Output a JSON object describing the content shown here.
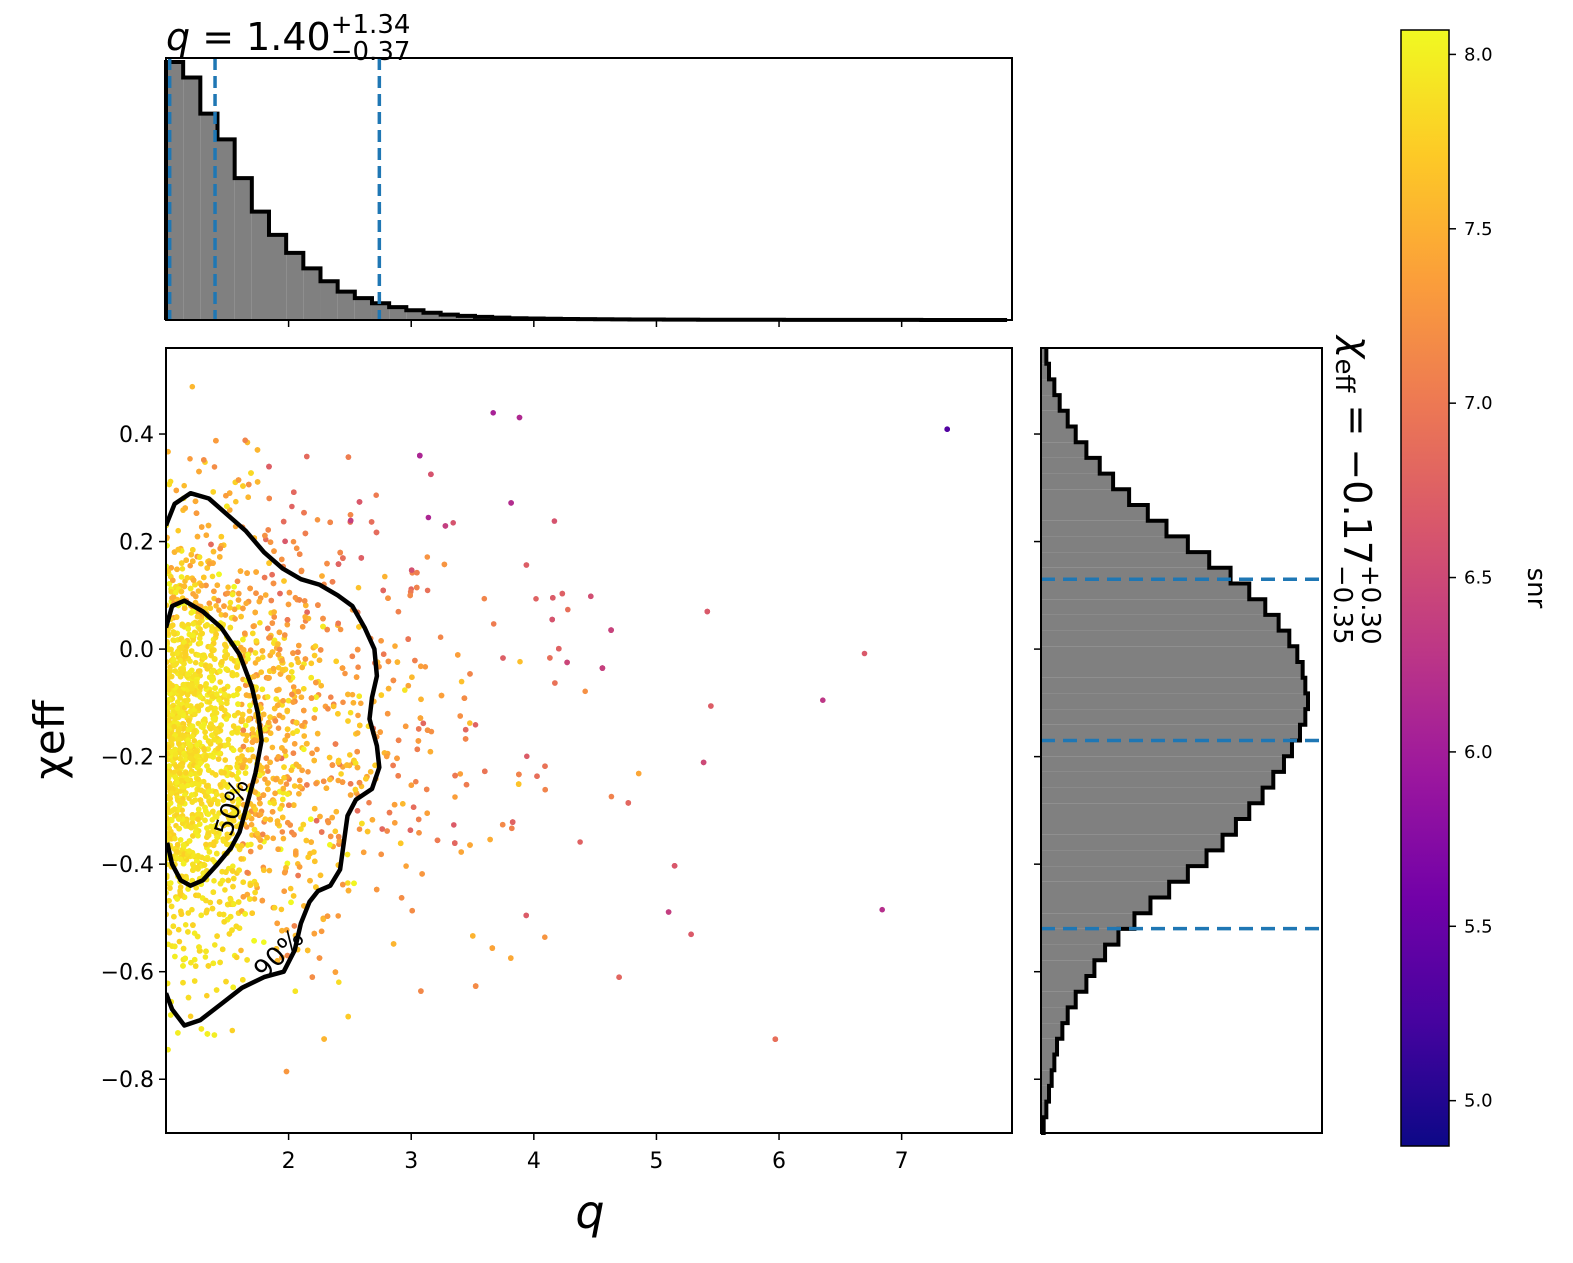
{
  "chart_data": [
    {
      "type": "scatter",
      "panel": "joint",
      "title": "",
      "xlabel": "q",
      "ylabel": "χeff",
      "xlim": [
        1.0,
        7.9
      ],
      "ylim": [
        -0.9,
        0.56
      ],
      "xticks": [
        "2",
        "3",
        "4",
        "5",
        "6",
        "7"
      ],
      "xtick_values": [
        2,
        3,
        4,
        5,
        6,
        7
      ],
      "yticks": [
        "0.4",
        "0.2",
        "0.0",
        "−0.2",
        "−0.4",
        "−0.6",
        "−0.8"
      ],
      "ytick_values": [
        0.4,
        0.2,
        0.0,
        -0.2,
        -0.4,
        -0.6,
        -0.8
      ],
      "color_by": "snr",
      "contours": [
        {
          "label": "50%",
          "points": [
            [
              1.0,
              0.04
            ],
            [
              1.05,
              0.08
            ],
            [
              1.15,
              0.09
            ],
            [
              1.3,
              0.07
            ],
            [
              1.45,
              0.04
            ],
            [
              1.6,
              -0.01
            ],
            [
              1.7,
              -0.07
            ],
            [
              1.75,
              -0.12
            ],
            [
              1.78,
              -0.17
            ],
            [
              1.73,
              -0.23
            ],
            [
              1.66,
              -0.29
            ],
            [
              1.6,
              -0.34
            ],
            [
              1.53,
              -0.37
            ],
            [
              1.42,
              -0.4
            ],
            [
              1.3,
              -0.43
            ],
            [
              1.2,
              -0.44
            ],
            [
              1.12,
              -0.43
            ],
            [
              1.05,
              -0.4
            ],
            [
              1.01,
              -0.36
            ]
          ]
        },
        {
          "label": "90%",
          "points": [
            [
              1.0,
              0.23
            ],
            [
              1.07,
              0.27
            ],
            [
              1.2,
              0.29
            ],
            [
              1.35,
              0.28
            ],
            [
              1.5,
              0.25
            ],
            [
              1.65,
              0.22
            ],
            [
              1.8,
              0.18
            ],
            [
              1.95,
              0.15
            ],
            [
              2.1,
              0.13
            ],
            [
              2.25,
              0.12
            ],
            [
              2.4,
              0.1
            ],
            [
              2.52,
              0.08
            ],
            [
              2.62,
              0.04
            ],
            [
              2.7,
              0.0
            ],
            [
              2.72,
              -0.05
            ],
            [
              2.68,
              -0.09
            ],
            [
              2.66,
              -0.13
            ],
            [
              2.72,
              -0.18
            ],
            [
              2.74,
              -0.22
            ],
            [
              2.68,
              -0.26
            ],
            [
              2.55,
              -0.28
            ],
            [
              2.48,
              -0.31
            ],
            [
              2.45,
              -0.36
            ],
            [
              2.42,
              -0.41
            ],
            [
              2.34,
              -0.44
            ],
            [
              2.24,
              -0.45
            ],
            [
              2.17,
              -0.47
            ],
            [
              2.1,
              -0.51
            ],
            [
              2.05,
              -0.56
            ],
            [
              1.96,
              -0.6
            ],
            [
              1.8,
              -0.61
            ],
            [
              1.62,
              -0.63
            ],
            [
              1.45,
              -0.66
            ],
            [
              1.28,
              -0.69
            ],
            [
              1.15,
              -0.7
            ],
            [
              1.05,
              -0.67
            ],
            [
              1.0,
              -0.64
            ]
          ]
        }
      ]
    },
    {
      "type": "histogram",
      "panel": "top-marginal",
      "title": "q = 1.40+1.34−0.37",
      "title_parts": {
        "var": "q",
        "equals": " = ",
        "value": "1.40",
        "plus": "+1.34",
        "minus": "−0.37"
      },
      "bin_start": 1.0,
      "bin_width": 0.14,
      "counts": [
        1.0,
        0.94,
        0.8,
        0.7,
        0.55,
        0.42,
        0.33,
        0.26,
        0.2,
        0.15,
        0.11,
        0.085,
        0.065,
        0.05,
        0.038,
        0.028,
        0.021,
        0.016,
        0.012,
        0.009,
        0.007,
        0.006,
        0.005,
        0.004,
        0.0035,
        0.003,
        0.0025,
        0.002,
        0.002,
        0.0015,
        0.0015,
        0.001,
        0.001,
        0.001,
        0.001,
        0.0008,
        0.0007,
        0.0006,
        0.0005,
        0.0005,
        0.0004,
        0.0004,
        0.0003,
        0.0003,
        0.0002,
        0.0002,
        0.0002,
        0.0001,
        0.0001
      ],
      "quantile_lines": [
        1.03,
        1.4,
        2.74
      ],
      "line_color": "#1f77b4",
      "fill_color": "#808080"
    },
    {
      "type": "histogram",
      "panel": "right-marginal",
      "orientation": "horizontal",
      "title": "χeff = −0.17+0.30−0.35",
      "title_parts": {
        "var": "χ",
        "sub": "eff",
        "equals": " = ",
        "value": "−0.17",
        "plus": "+0.30",
        "minus": "−0.35"
      },
      "bin_start": -0.9,
      "bin_width": 0.0292,
      "counts": [
        0.01,
        0.02,
        0.03,
        0.04,
        0.05,
        0.06,
        0.08,
        0.1,
        0.13,
        0.17,
        0.2,
        0.24,
        0.29,
        0.35,
        0.41,
        0.48,
        0.55,
        0.62,
        0.68,
        0.73,
        0.78,
        0.83,
        0.87,
        0.91,
        0.94,
        0.97,
        0.99,
        1.0,
        0.99,
        0.98,
        0.96,
        0.93,
        0.89,
        0.84,
        0.78,
        0.71,
        0.63,
        0.55,
        0.47,
        0.4,
        0.33,
        0.27,
        0.22,
        0.17,
        0.13,
        0.1,
        0.07,
        0.05,
        0.03,
        0.02
      ],
      "quantile_lines": [
        -0.52,
        -0.17,
        0.13
      ],
      "line_color": "#1f77b4",
      "fill_color": "#808080"
    },
    {
      "type": "colorbar",
      "label": "snr",
      "cmap": "plasma",
      "range": [
        4.87,
        8.07
      ],
      "ticks": [
        "5.0",
        "5.5",
        "6.0",
        "6.5",
        "7.0",
        "7.5",
        "8.0"
      ],
      "tick_values": [
        5.0,
        5.5,
        6.0,
        6.5,
        7.0,
        7.5,
        8.0
      ],
      "cmap_stops": [
        "#0d0887",
        "#46039f",
        "#7201a8",
        "#9c179e",
        "#bd3786",
        "#d8576b",
        "#ed7953",
        "#fb9f3a",
        "#fdca26",
        "#f0f921"
      ]
    }
  ]
}
